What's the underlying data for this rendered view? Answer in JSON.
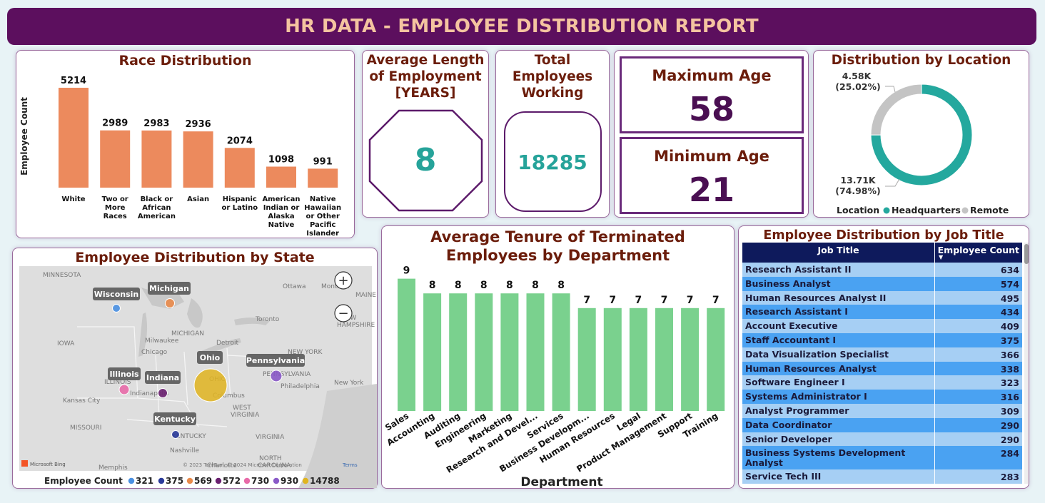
{
  "header": {
    "title": "HR DATA - EMPLOYEE DISTRIBUTION REPORT"
  },
  "race": {
    "title": "Race Distribution",
    "chart_data": {
      "type": "bar",
      "categories": [
        [
          "White"
        ],
        [
          "Two or",
          "More",
          "Races"
        ],
        [
          "Black or",
          "African",
          "American"
        ],
        [
          "Asian"
        ],
        [
          "Hispanic",
          "or Latino"
        ],
        [
          "American",
          "Indian or",
          "Alaska",
          "Native"
        ],
        [
          "Native",
          "Hawaiian",
          "or Other",
          "Pacific",
          "Islander"
        ]
      ],
      "values": [
        5214,
        2989,
        2983,
        2936,
        2074,
        1098,
        991
      ],
      "ylabel": "Employee Count",
      "color": "#ec8a5d"
    }
  },
  "avg_length": {
    "title": "Average Length of Employment [YEARS]",
    "title_lines": [
      "Average Length",
      "of Employment",
      "[YEARS]"
    ],
    "value": "8"
  },
  "total_emp": {
    "title_lines": [
      "Total",
      "Employees",
      "Working"
    ],
    "value": "18285"
  },
  "max_age": {
    "label": "Maximum Age",
    "value": "58"
  },
  "min_age": {
    "label": "Minimum Age",
    "value": "21"
  },
  "location": {
    "title": "Distribution by Location",
    "chart_data": {
      "type": "pie",
      "labels": [
        "Headquarters",
        "Remote"
      ],
      "values": [
        13.71,
        4.58
      ],
      "value_labels": [
        "13.71K",
        "4.58K"
      ],
      "pct_labels": [
        "(74.98%)",
        "(25.02%)"
      ],
      "colors": [
        "#24a89e",
        "#c4c4c4"
      ]
    },
    "legend_title": "Location",
    "legend": [
      "Headquarters",
      "Remote"
    ]
  },
  "state_map": {
    "title": "Employee Distribution by State",
    "states": [
      "Wisconsin",
      "Michigan",
      "Ohio",
      "Pennsylvania",
      "Illinois",
      "Indiana",
      "Kentucky"
    ],
    "map_labels": [
      "MINNESOTA",
      "Ottawa",
      "Montreal",
      "MAINE",
      "NEW HAMPSHIRE",
      "Toronto",
      "MICHIGAN",
      "IOWA",
      "Milwaukee",
      "Chicago",
      "Detroit",
      "NEW YORK",
      "ILLINOIS",
      "Indianapolis",
      "OHIO",
      "Columbus",
      "PENNSYLVANIA",
      "Philadelphia",
      "New York",
      "Kansas City",
      "WEST VIRGINIA",
      "MISSOURI",
      "KENTUCKY",
      "Nashville",
      "VIRGINIA",
      "NORTH CAROLINA",
      "Memphis",
      "Charlotte"
    ],
    "attribution": "© 2023 TomTom, © 2024 Microsoft Corporation",
    "terms": "Terms",
    "bing_label": "Microsoft Bing",
    "legend_title": "Employee Count",
    "legend": [
      {
        "label": "321",
        "color": "#4a90e2"
      },
      {
        "label": "375",
        "color": "#2a3a9a"
      },
      {
        "label": "569",
        "color": "#e98a4a"
      },
      {
        "label": "572",
        "color": "#6a2070"
      },
      {
        "label": "730",
        "color": "#e86aa8"
      },
      {
        "label": "930",
        "color": "#8a5ac8"
      },
      {
        "label": "14788",
        "color": "#e0b420"
      }
    ],
    "zoom_in": "+",
    "zoom_out": "−"
  },
  "tenure": {
    "title_lines": [
      "Average Tenure of Terminated",
      "Employees by Department"
    ],
    "chart_data": {
      "type": "bar",
      "categories": [
        "Sales",
        "Accounting",
        "Auditing",
        "Engineering",
        "Marketing",
        "Research and Devel...",
        "Services",
        "Business Developm...",
        "Human Resources",
        "Legal",
        "Product Management",
        "Support",
        "Training"
      ],
      "values": [
        9,
        8,
        8,
        8,
        8,
        8,
        8,
        7,
        7,
        7,
        7,
        7,
        7
      ],
      "xlabel": "Department",
      "color": "#7ad18e"
    }
  },
  "job_title": {
    "title": "Employee Distribution by Job Title",
    "columns": [
      "Job Title",
      "Employee Count"
    ],
    "rows": [
      [
        "Research Assistant II",
        "634"
      ],
      [
        "Business Analyst",
        "574"
      ],
      [
        "Human Resources Analyst II",
        "495"
      ],
      [
        "Research Assistant I",
        "434"
      ],
      [
        "Account Executive",
        "409"
      ],
      [
        "Staff Accountant I",
        "375"
      ],
      [
        "Data Visualization Specialist",
        "366"
      ],
      [
        "Human Resources Analyst",
        "338"
      ],
      [
        "Software Engineer I",
        "323"
      ],
      [
        "Systems Administrator I",
        "316"
      ],
      [
        "Analyst Programmer",
        "309"
      ],
      [
        "Data Coordinator",
        "290"
      ],
      [
        "Senior Developer",
        "290"
      ],
      [
        "Business Systems Development Analyst",
        "284"
      ],
      [
        "Service Tech III",
        "283"
      ]
    ]
  }
}
